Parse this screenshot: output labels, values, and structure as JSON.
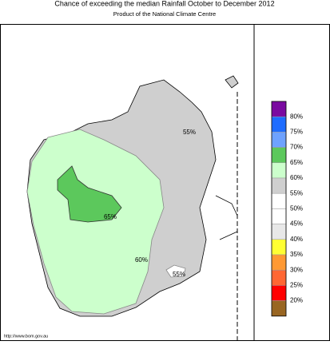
{
  "header": {
    "title": "Chance of exceeding the median Rainfall October to December 2012",
    "subtitle": "Product of the National Climate Centre"
  },
  "map": {
    "labels": [
      "55%",
      "65%",
      "60%",
      "55%"
    ],
    "source": "http://www.bom.gov.au"
  },
  "legend": {
    "labels": [
      "80%",
      "75%",
      "70%",
      "65%",
      "60%",
      "55%",
      "50%",
      "45%",
      "40%",
      "35%",
      "30%",
      "25%",
      "20%"
    ],
    "colors": [
      "#7a0aa0",
      "#1e6cff",
      "#6ea2ff",
      "#5cc85c",
      "#ccffcc",
      "#cfcfcf",
      "#ffffff",
      "#ffffff",
      "#e8e8e8",
      "#ffff33",
      "#ff9933",
      "#ff6633",
      "#ff0000",
      "#996622"
    ]
  }
}
